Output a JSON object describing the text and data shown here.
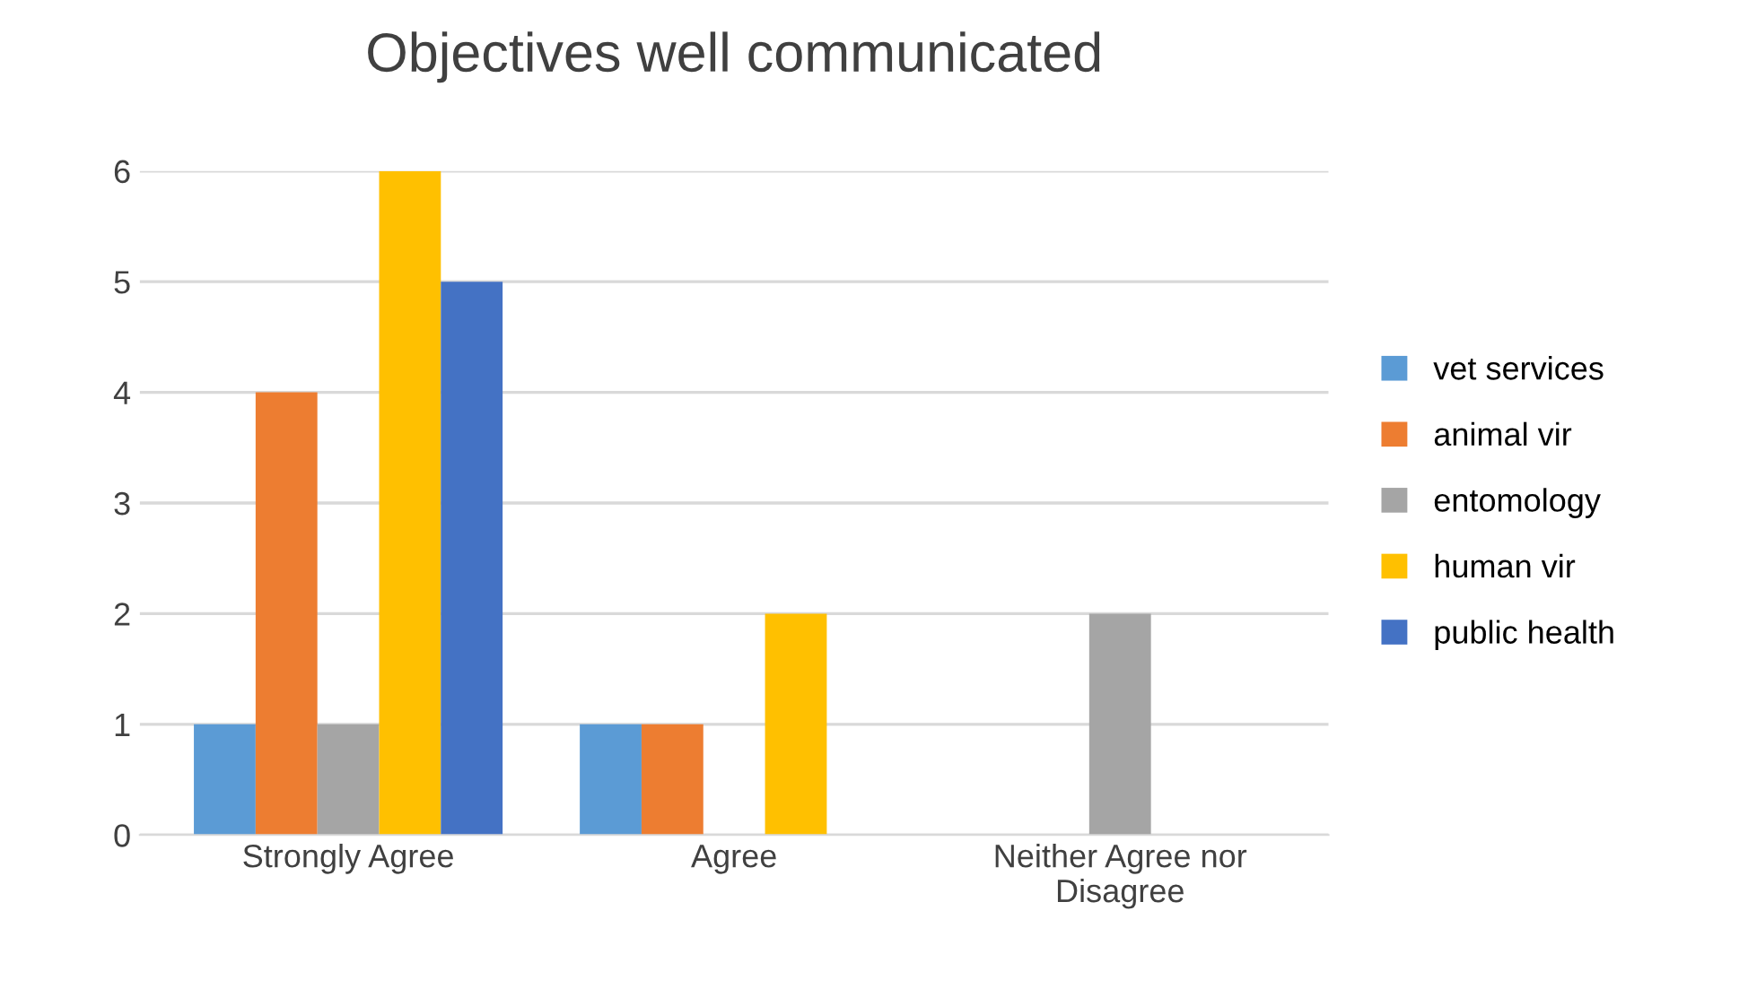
{
  "chart_data": {
    "type": "bar",
    "title": "Objectives well communicated",
    "categories": [
      "Strongly Agree",
      "Agree",
      "Neither Agree nor\nDisagree"
    ],
    "series": [
      {
        "name": "vet services",
        "color": "#5b9bd5",
        "values": [
          1,
          1,
          0
        ]
      },
      {
        "name": "animal vir",
        "color": "#ed7d31",
        "values": [
          4,
          1,
          0
        ]
      },
      {
        "name": "entomology",
        "color": "#a5a5a5",
        "values": [
          1,
          0,
          2
        ]
      },
      {
        "name": "human vir",
        "color": "#ffc000",
        "values": [
          6,
          2,
          0
        ]
      },
      {
        "name": "public health",
        "color": "#4472c4",
        "values": [
          5,
          0,
          0
        ]
      }
    ],
    "ylim": [
      0,
      6
    ],
    "yticks": [
      0,
      1,
      2,
      3,
      4,
      5,
      6
    ],
    "grid": "y",
    "legend": "right"
  }
}
